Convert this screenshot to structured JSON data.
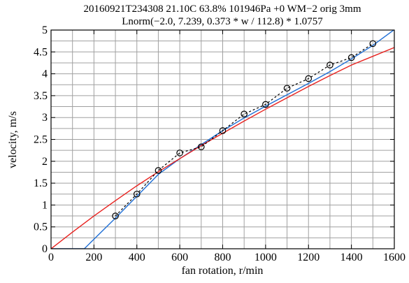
{
  "chart_data": {
    "type": "line",
    "title_line1": "20160921T234308 21.10C 63.8% 101946Pa +0 WM−2 orig 3mm",
    "title_line2": "Lnorm(−2.0, 7.239, 0.373 * w / 112.8) * 1.0757",
    "xlabel": "fan rotation, r/min",
    "ylabel": "velocity, m/s",
    "xlim": [
      0,
      1600
    ],
    "ylim": [
      0,
      5
    ],
    "xticks": [
      0,
      200,
      400,
      600,
      800,
      1000,
      1200,
      1400,
      1600
    ],
    "yticks": [
      0,
      0.5,
      1,
      1.5,
      2,
      2.5,
      3,
      3.5,
      4,
      4.5,
      5
    ],
    "xtick_labels": [
      "0",
      "200",
      "400",
      "600",
      "800",
      "1000",
      "1200",
      "1400",
      "1600"
    ],
    "ytick_labels": [
      "0",
      "0.5",
      "1",
      "1.5",
      "2",
      "2.5",
      "3",
      "3.5",
      "4",
      "4.5",
      "5"
    ],
    "grid": true,
    "minor_x_step": 100,
    "minor_y_step": 0.25,
    "series": [
      {
        "style": "dashed-with-circle-markers",
        "color": "#000000",
        "points": [
          [
            300,
            0.75
          ],
          [
            400,
            1.25
          ],
          [
            500,
            1.79
          ],
          [
            600,
            2.19
          ],
          [
            700,
            2.33
          ],
          [
            800,
            2.7
          ],
          [
            900,
            3.08
          ],
          [
            1000,
            3.3
          ],
          [
            1100,
            3.67
          ],
          [
            1200,
            3.89
          ],
          [
            1300,
            4.2
          ],
          [
            1400,
            4.37
          ],
          [
            1500,
            4.69
          ]
        ]
      },
      {
        "style": "solid",
        "color": "#1f6fd6",
        "points": [
          [
            0,
            0
          ],
          [
            155,
            0
          ],
          [
            300,
            0.7
          ],
          [
            400,
            1.2
          ],
          [
            500,
            1.7
          ],
          [
            600,
            2.06
          ],
          [
            700,
            2.38
          ],
          [
            800,
            2.7
          ],
          [
            900,
            2.99
          ],
          [
            1000,
            3.26
          ],
          [
            1100,
            3.52
          ],
          [
            1200,
            3.78
          ],
          [
            1300,
            4.05
          ],
          [
            1400,
            4.34
          ],
          [
            1500,
            4.65
          ],
          [
            1600,
            5.01
          ]
        ]
      },
      {
        "style": "solid",
        "color": "#e8221f",
        "points": [
          [
            0,
            0
          ],
          [
            100,
            0.38
          ],
          [
            200,
            0.75
          ],
          [
            300,
            1.1
          ],
          [
            400,
            1.44
          ],
          [
            500,
            1.76
          ],
          [
            600,
            2.06
          ],
          [
            700,
            2.36
          ],
          [
            800,
            2.64
          ],
          [
            900,
            2.92
          ],
          [
            1000,
            3.19
          ],
          [
            1100,
            3.45
          ],
          [
            1200,
            3.71
          ],
          [
            1300,
            3.96
          ],
          [
            1400,
            4.2
          ],
          [
            1500,
            4.4
          ],
          [
            1600,
            4.6
          ]
        ]
      }
    ]
  }
}
